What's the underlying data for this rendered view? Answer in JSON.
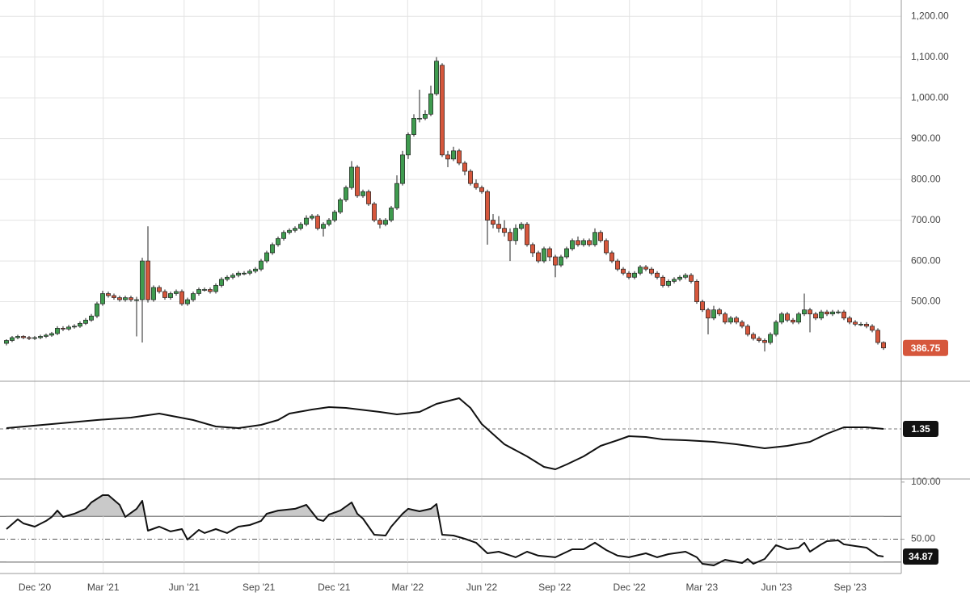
{
  "chart_data": [
    {
      "type": "candlestick",
      "up_color": "#3f9b4f",
      "down_color": "#d6573c",
      "outline_color": "#222222",
      "last_box_color": "#d6573c",
      "xlim": [
        -1.14,
        158.14
      ],
      "ylim": [
        305,
        1240
      ],
      "grid": true,
      "yticks": [
        {
          "value": 500,
          "label": "500.00"
        },
        {
          "value": 600,
          "label": "600.00"
        },
        {
          "value": 700,
          "label": "700.00"
        },
        {
          "value": 800,
          "label": "800.00"
        },
        {
          "value": 900,
          "label": "900.00"
        },
        {
          "value": 1000,
          "label": "1,000.00"
        },
        {
          "value": 1100,
          "label": "1,100.00"
        },
        {
          "value": 1200,
          "label": "1,200.00"
        }
      ],
      "ohlc": [
        [
          398,
          408,
          393,
          405
        ],
        [
          405,
          416,
          401,
          412
        ],
        [
          412,
          419,
          408,
          415
        ],
        [
          415,
          418,
          408,
          412
        ],
        [
          412,
          416,
          406,
          410
        ],
        [
          410,
          416,
          406,
          412
        ],
        [
          412,
          419,
          408,
          415
        ],
        [
          415,
          422,
          411,
          418
        ],
        [
          418,
          426,
          414,
          422
        ],
        [
          422,
          440,
          418,
          435
        ],
        [
          435,
          440,
          428,
          433
        ],
        [
          433,
          443,
          429,
          438
        ],
        [
          438,
          445,
          434,
          440
        ],
        [
          440,
          452,
          436,
          447
        ],
        [
          447,
          460,
          443,
          455
        ],
        [
          455,
          470,
          451,
          465
        ],
        [
          465,
          500,
          460,
          495
        ],
        [
          495,
          527,
          490,
          520
        ],
        [
          520,
          525,
          510,
          515
        ],
        [
          515,
          520,
          505,
          510
        ],
        [
          510,
          515,
          500,
          505
        ],
        [
          505,
          515,
          500,
          510
        ],
        [
          510,
          515,
          500,
          505
        ],
        [
          505,
          512,
          415,
          505
        ],
        [
          505,
          608,
          400,
          600
        ],
        [
          600,
          685,
          498,
          505
        ],
        [
          505,
          540,
          500,
          535
        ],
        [
          535,
          540,
          520,
          525
        ],
        [
          525,
          530,
          505,
          510
        ],
        [
          510,
          525,
          505,
          520
        ],
        [
          520,
          530,
          515,
          525
        ],
        [
          525,
          530,
          490,
          495
        ],
        [
          495,
          510,
          490,
          505
        ],
        [
          505,
          525,
          500,
          520
        ],
        [
          520,
          535,
          515,
          530
        ],
        [
          530,
          535,
          525,
          530
        ],
        [
          530,
          535,
          520,
          525
        ],
        [
          525,
          545,
          520,
          540
        ],
        [
          540,
          560,
          535,
          555
        ],
        [
          555,
          565,
          550,
          560
        ],
        [
          560,
          570,
          555,
          565
        ],
        [
          565,
          575,
          560,
          570
        ],
        [
          570,
          575,
          565,
          570
        ],
        [
          570,
          580,
          565,
          575
        ],
        [
          575,
          585,
          570,
          580
        ],
        [
          580,
          605,
          575,
          600
        ],
        [
          600,
          625,
          595,
          620
        ],
        [
          620,
          645,
          615,
          640
        ],
        [
          640,
          660,
          635,
          655
        ],
        [
          655,
          675,
          650,
          670
        ],
        [
          670,
          680,
          665,
          675
        ],
        [
          675,
          685,
          670,
          680
        ],
        [
          680,
          695,
          675,
          690
        ],
        [
          690,
          712,
          685,
          705
        ],
        [
          705,
          715,
          700,
          710
        ],
        [
          710,
          715,
          675,
          680
        ],
        [
          680,
          695,
          660,
          690
        ],
        [
          690,
          705,
          685,
          700
        ],
        [
          700,
          725,
          695,
          720
        ],
        [
          720,
          755,
          715,
          750
        ],
        [
          750,
          785,
          745,
          780
        ],
        [
          780,
          845,
          775,
          830
        ],
        [
          830,
          835,
          755,
          760
        ],
        [
          760,
          775,
          755,
          770
        ],
        [
          770,
          775,
          735,
          740
        ],
        [
          740,
          745,
          695,
          700
        ],
        [
          700,
          705,
          680,
          690
        ],
        [
          690,
          705,
          685,
          700
        ],
        [
          700,
          735,
          695,
          730
        ],
        [
          730,
          810,
          725,
          790
        ],
        [
          790,
          870,
          785,
          860
        ],
        [
          860,
          915,
          850,
          910
        ],
        [
          910,
          960,
          905,
          950
        ],
        [
          950,
          1020,
          940,
          950
        ],
        [
          950,
          970,
          945,
          960
        ],
        [
          960,
          1030,
          955,
          1010
        ],
        [
          1010,
          1100,
          1005,
          1090
        ],
        [
          1080,
          1085,
          855,
          860
        ],
        [
          860,
          870,
          830,
          850
        ],
        [
          850,
          880,
          845,
          870
        ],
        [
          870,
          875,
          835,
          840
        ],
        [
          840,
          845,
          810,
          820
        ],
        [
          820,
          825,
          785,
          790
        ],
        [
          790,
          800,
          775,
          780
        ],
        [
          780,
          785,
          765,
          770
        ],
        [
          770,
          775,
          640,
          700
        ],
        [
          700,
          715,
          680,
          690
        ],
        [
          690,
          710,
          670,
          680
        ],
        [
          680,
          700,
          660,
          670
        ],
        [
          670,
          680,
          600,
          650
        ],
        [
          650,
          690,
          640,
          680
        ],
        [
          680,
          695,
          675,
          690
        ],
        [
          690,
          695,
          635,
          640
        ],
        [
          640,
          645,
          610,
          620
        ],
        [
          620,
          625,
          595,
          600
        ],
        [
          600,
          635,
          595,
          630
        ],
        [
          630,
          635,
          600,
          610
        ],
        [
          610,
          615,
          560,
          590
        ],
        [
          590,
          615,
          585,
          610
        ],
        [
          610,
          635,
          605,
          630
        ],
        [
          630,
          655,
          625,
          650
        ],
        [
          650,
          660,
          635,
          640
        ],
        [
          640,
          655,
          635,
          650
        ],
        [
          650,
          655,
          635,
          640
        ],
        [
          640,
          680,
          635,
          670
        ],
        [
          670,
          675,
          645,
          650
        ],
        [
          650,
          655,
          615,
          620
        ],
        [
          620,
          625,
          595,
          600
        ],
        [
          600,
          605,
          575,
          580
        ],
        [
          580,
          585,
          565,
          570
        ],
        [
          570,
          575,
          555,
          560
        ],
        [
          560,
          575,
          555,
          570
        ],
        [
          570,
          590,
          565,
          585
        ],
        [
          585,
          590,
          575,
          580
        ],
        [
          580,
          585,
          565,
          570
        ],
        [
          570,
          575,
          555,
          560
        ],
        [
          560,
          565,
          535,
          540
        ],
        [
          540,
          555,
          535,
          550
        ],
        [
          550,
          560,
          545,
          555
        ],
        [
          555,
          565,
          550,
          560
        ],
        [
          560,
          570,
          555,
          565
        ],
        [
          565,
          570,
          545,
          550
        ],
        [
          550,
          555,
          495,
          500
        ],
        [
          500,
          505,
          475,
          480
        ],
        [
          480,
          485,
          420,
          460
        ],
        [
          460,
          490,
          455,
          480
        ],
        [
          480,
          485,
          465,
          470
        ],
        [
          470,
          475,
          445,
          450
        ],
        [
          450,
          465,
          445,
          460
        ],
        [
          460,
          465,
          445,
          450
        ],
        [
          450,
          455,
          435,
          440
        ],
        [
          440,
          445,
          415,
          420
        ],
        [
          420,
          425,
          405,
          410
        ],
        [
          410,
          415,
          400,
          405
        ],
        [
          405,
          410,
          378,
          400
        ],
        [
          400,
          425,
          395,
          420
        ],
        [
          420,
          455,
          415,
          450
        ],
        [
          450,
          475,
          445,
          470
        ],
        [
          470,
          475,
          450,
          455
        ],
        [
          455,
          460,
          445,
          450
        ],
        [
          450,
          475,
          445,
          470
        ],
        [
          470,
          520,
          465,
          480
        ],
        [
          480,
          485,
          425,
          470
        ],
        [
          470,
          475,
          455,
          460
        ],
        [
          460,
          480,
          455,
          475
        ],
        [
          475,
          480,
          465,
          470
        ],
        [
          470,
          480,
          465,
          475
        ],
        [
          475,
          480,
          470,
          475
        ],
        [
          475,
          480,
          455,
          460
        ],
        [
          460,
          465,
          445,
          450
        ],
        [
          450,
          455,
          440,
          445
        ],
        [
          445,
          450,
          440,
          445
        ],
        [
          445,
          450,
          435,
          440
        ],
        [
          440,
          445,
          425,
          430
        ],
        [
          430,
          435,
          395,
          400
        ],
        [
          400,
          403,
          382,
          386.75
        ]
      ]
    },
    {
      "type": "line",
      "color": "#111111",
      "last_box_color": "#111111",
      "xlim": [
        -1.14,
        158.14
      ],
      "ylim": [
        1.04,
        1.64
      ],
      "x": [
        0,
        8,
        16,
        22,
        27,
        33,
        37,
        41,
        45,
        48,
        50,
        54,
        57,
        60,
        66,
        69,
        73,
        76,
        80,
        82,
        84,
        88,
        92,
        95,
        97,
        99,
        102,
        105,
        108,
        110,
        113,
        116,
        120,
        125,
        129,
        134,
        138,
        142,
        145,
        148,
        152,
        155
      ],
      "values": [
        1.355,
        1.38,
        1.405,
        1.42,
        1.445,
        1.405,
        1.365,
        1.355,
        1.375,
        1.405,
        1.445,
        1.47,
        1.485,
        1.48,
        1.455,
        1.44,
        1.455,
        1.505,
        1.54,
        1.48,
        1.38,
        1.255,
        1.18,
        1.115,
        1.1,
        1.13,
        1.18,
        1.245,
        1.28,
        1.305,
        1.3,
        1.285,
        1.28,
        1.27,
        1.255,
        1.23,
        1.245,
        1.27,
        1.32,
        1.36,
        1.36,
        1.35
      ]
    },
    {
      "type": "line",
      "color": "#111111",
      "last_box_color": "#111111",
      "fill_color": "#c9c9c9",
      "xlim": [
        -1.14,
        158.14
      ],
      "ylim": [
        20,
        102
      ],
      "yticks": [
        {
          "value": 50,
          "label": "50.00"
        },
        {
          "value": 100,
          "label": "100.00"
        }
      ],
      "levels": [
        {
          "value": 70,
          "style": "solid",
          "shade": "above"
        },
        {
          "value": 50,
          "style": "dashdot"
        },
        {
          "value": 30,
          "style": "solid",
          "shade": "below"
        }
      ],
      "xticks": [
        {
          "value": 5,
          "label": "Dec '20"
        },
        {
          "value": 17.1,
          "label": "Mar '21"
        },
        {
          "value": 31.4,
          "label": "Jun '21"
        },
        {
          "value": 44.6,
          "label": "Sep '21"
        },
        {
          "value": 57.9,
          "label": "Dec '21"
        },
        {
          "value": 70.9,
          "label": "Mar '22"
        },
        {
          "value": 84,
          "label": "Jun '22"
        },
        {
          "value": 96.9,
          "label": "Sep '22"
        },
        {
          "value": 110.1,
          "label": "Dec '22"
        },
        {
          "value": 122.9,
          "label": "Mar '23"
        },
        {
          "value": 136.1,
          "label": "Jun '23"
        },
        {
          "value": 149.1,
          "label": "Sep '23"
        }
      ],
      "x": [
        0,
        2,
        3,
        5,
        7,
        8,
        9,
        10,
        12,
        14,
        15,
        17,
        18,
        20,
        21,
        23,
        24,
        25,
        27,
        29,
        31,
        32,
        34,
        35,
        37,
        39,
        41,
        43,
        45,
        46,
        48,
        51,
        53,
        55,
        56,
        57,
        59,
        61,
        62,
        63,
        65,
        67,
        68,
        70,
        71,
        73,
        75,
        76,
        77,
        79,
        81,
        83,
        85,
        87,
        90,
        92,
        94,
        97,
        100,
        102,
        104,
        106,
        108,
        110,
        113,
        115,
        117,
        120,
        122,
        123,
        125,
        127,
        130,
        131,
        132,
        134,
        136,
        138,
        140,
        141,
        142,
        144,
        145,
        147,
        148,
        150,
        152,
        154,
        155
      ],
      "values": [
        58.9,
        67.4,
        63.8,
        61.0,
        66.0,
        69.5,
        75.1,
        69.5,
        72.3,
        76.6,
        82.2,
        88.6,
        88.6,
        80.1,
        69.5,
        76.6,
        83.6,
        57.5,
        61.0,
        56.8,
        58.9,
        49.7,
        58.2,
        55.4,
        58.9,
        55.4,
        61.0,
        62.4,
        66.0,
        72.3,
        75.1,
        76.6,
        80.1,
        67.4,
        66.0,
        71.6,
        75.1,
        82.2,
        72.3,
        68.1,
        53.9,
        53.2,
        61.0,
        72.3,
        76.6,
        74.4,
        76.6,
        80.8,
        53.9,
        53.2,
        50.4,
        46.9,
        37.7,
        39.1,
        34.2,
        39.1,
        35.6,
        34.2,
        41.2,
        41.2,
        46.9,
        40.5,
        35.6,
        34.2,
        37.7,
        34.2,
        37.0,
        39.1,
        34.2,
        28.5,
        27.1,
        32.0,
        29.2,
        32.7,
        28.5,
        32.7,
        44.8,
        41.2,
        42.6,
        46.9,
        39.1,
        45.5,
        48.3,
        49.0,
        45.5,
        44.0,
        42.6,
        35.6,
        34.87
      ]
    }
  ]
}
